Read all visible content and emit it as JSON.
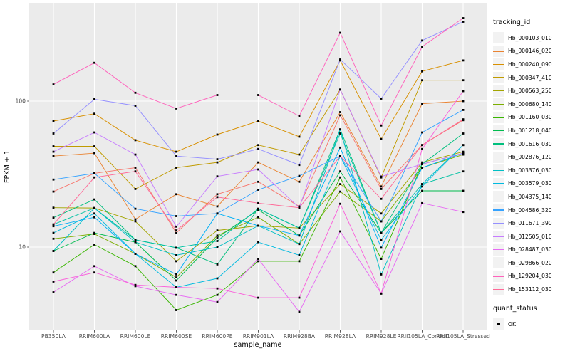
{
  "chart_data": {
    "type": "line",
    "title": "",
    "xlabel": "sample_name",
    "ylabel": "FPKM + 1",
    "y_scale": "log10",
    "y_tick_labels": [
      "10",
      "100"
    ],
    "y_major_breaks": [
      10,
      100
    ],
    "y_minor_breaks": [
      3.162,
      31.62,
      316.2
    ],
    "ylim": [
      2.7,
      470
    ],
    "grid": true,
    "legend_position": "right",
    "legend_title": "tracking_id",
    "marker": "filled-black-square",
    "x_categories": [
      "PB350LA",
      "RRIM600LA",
      "RRIM600LE",
      "RRIM600SE",
      "RRIM600PE",
      "RRIM901LA",
      "RRIM928BA",
      "RRIM928LA",
      "RRIM928LE",
      "RRII105LA_Control",
      "RRII105LA_Stressed"
    ],
    "series": [
      {
        "name": "Hb_000103_010",
        "color": "#F8766D",
        "values": [
          24,
          32,
          35,
          12.5,
          23,
          28,
          19,
          80,
          25,
          50,
          74
        ]
      },
      {
        "name": "Hb_000146_020",
        "color": "#EA8331",
        "values": [
          42,
          44,
          15.5,
          23,
          19,
          38,
          28,
          84,
          26,
          96,
          100
        ]
      },
      {
        "name": "Hb_000240_090",
        "color": "#D89000",
        "values": [
          73,
          82,
          54,
          45,
          59,
          73,
          57,
          190,
          55,
          160,
          190
        ]
      },
      {
        "name": "Hb_000347_410",
        "color": "#C09B00",
        "values": [
          49,
          49,
          25,
          35,
          38,
          50,
          43,
          120,
          30,
          139,
          139
        ]
      },
      {
        "name": "Hb_000563_250",
        "color": "#A3A500",
        "values": [
          18.6,
          18.5,
          15,
          8,
          13,
          14,
          13.5,
          27,
          17,
          38,
          45
        ]
      },
      {
        "name": "Hb_000680_140",
        "color": "#7CAE00",
        "values": [
          11.4,
          12.3,
          9,
          6.2,
          12,
          16,
          10.5,
          24,
          15,
          35,
          43
        ]
      },
      {
        "name": "Hb_001160_030",
        "color": "#39B600",
        "values": [
          6.7,
          10.4,
          7.4,
          3.7,
          4.7,
          8,
          8,
          30,
          8.3,
          37,
          44
        ]
      },
      {
        "name": "Hb_001218_040",
        "color": "#00BB4E",
        "values": [
          9.4,
          12.5,
          10.8,
          5.9,
          11.6,
          18,
          12,
          33,
          12.5,
          24.3,
          24.3
        ]
      },
      {
        "name": "Hb_001616_030",
        "color": "#00BF7D",
        "values": [
          15.9,
          21.2,
          11.2,
          9.9,
          7.6,
          18.3,
          13.5,
          64,
          12.5,
          37,
          60
        ]
      },
      {
        "name": "Hb_002876_120",
        "color": "#00C1A3",
        "values": [
          14.3,
          18.5,
          11.2,
          9.9,
          11,
          18.3,
          13.5,
          60,
          12.5,
          27,
          33
        ]
      },
      {
        "name": "Hb_003376_030",
        "color": "#00BFC4",
        "values": [
          9.4,
          18.5,
          10.8,
          8.8,
          10,
          14,
          10.5,
          64,
          6.5,
          27,
          50
        ]
      },
      {
        "name": "Hb_003579_030",
        "color": "#00BAE0",
        "values": [
          12.5,
          17,
          9,
          5.3,
          6.1,
          10.8,
          8.8,
          42,
          11.2,
          26,
          50
        ]
      },
      {
        "name": "Hb_004375_140",
        "color": "#00B0F6",
        "values": [
          13.9,
          16,
          9,
          6.5,
          17,
          14,
          12,
          48,
          9.9,
          35,
          44
        ]
      },
      {
        "name": "Hb_004586_320",
        "color": "#35A2FF",
        "values": [
          29,
          32,
          18.3,
          16.3,
          17,
          24.7,
          30.7,
          42,
          15,
          61,
          87
        ]
      },
      {
        "name": "Hb_011671_390",
        "color": "#9590FF",
        "values": [
          60,
          103,
          93,
          42,
          40,
          47,
          36.5,
          193,
          104,
          260,
          350
        ]
      },
      {
        "name": "Hb_012505_010",
        "color": "#C77CFF",
        "values": [
          45,
          61,
          43,
          13.8,
          30.5,
          34,
          18.6,
          120,
          30.4,
          37,
          44
        ]
      },
      {
        "name": "Hb_028487_030",
        "color": "#E76BF3",
        "values": [
          4.9,
          7.4,
          5.4,
          4.7,
          4.2,
          8.3,
          3.6,
          12.8,
          4.8,
          20,
          17.4
        ]
      },
      {
        "name": "Hb_029866_020",
        "color": "#FA62DB",
        "values": [
          5.8,
          6.7,
          5.5,
          5.3,
          5.2,
          4.5,
          4.5,
          19.8,
          4.8,
          47,
          117
        ]
      },
      {
        "name": "Hb_129204_030",
        "color": "#FF62BC",
        "values": [
          130,
          183,
          114,
          89,
          110,
          110,
          79,
          294,
          68,
          236,
          370
        ]
      },
      {
        "name": "Hb_153112_030",
        "color": "#FF6A98",
        "values": [
          14.3,
          30,
          33,
          13,
          22,
          20,
          18.6,
          42,
          21.4,
          50,
          75
        ]
      }
    ],
    "quant_legend": {
      "title": "quant_status",
      "items": [
        {
          "label": "OK"
        }
      ]
    },
    "theme": {
      "panel_background": "#EBEBEB",
      "grid_color": "#FFFFFF",
      "point_color": "#000000",
      "tick_text_color": "#4D4D4D",
      "axis_title_color": "#000000",
      "legend_key_fill": "#F2F2F2",
      "outer_background": "#FFFFFF"
    }
  }
}
